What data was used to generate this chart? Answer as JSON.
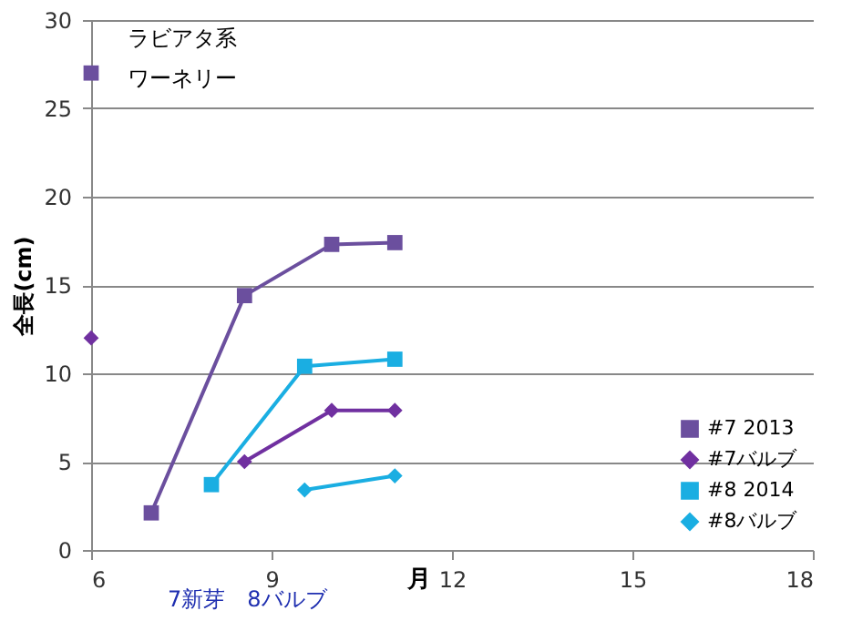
{
  "chart_data": {
    "type": "line",
    "xlabel": "月",
    "ylabel": "全長(cm)",
    "xlim": [
      6,
      18
    ],
    "xticks": [
      6,
      9,
      12,
      15,
      18
    ],
    "ylim": [
      0,
      30
    ],
    "yticks": [
      0,
      5,
      10,
      15,
      20,
      25,
      30
    ],
    "grid": "y",
    "legend": "bottom right",
    "annotations": [
      "ラビアタ系",
      "ワーネリー",
      "7新芽　8バルブ"
    ],
    "series": [
      {
        "name": "#7 2013",
        "color": "#6b4f9e",
        "marker": "square",
        "x": [
          7,
          8.55,
          10,
          11.05
        ],
        "values": [
          2.1,
          14.4,
          17.3,
          17.4
        ]
      },
      {
        "name": "#7バルブ",
        "color": "#7030a0",
        "marker": "diamond",
        "x": [
          6,
          7.5,
          8.55,
          10,
          11.05
        ],
        "values": [
          12,
          null,
          5,
          7.9,
          7.9
        ]
      },
      {
        "name": "#8 2014",
        "color": "#1aaee2",
        "marker": "square",
        "x": [
          8,
          9.55,
          11.05
        ],
        "values": [
          3.7,
          10.4,
          10.8
        ]
      },
      {
        "name": "#8バルブ",
        "color": "#1aaee2",
        "marker": "diamond",
        "x": [
          9.55,
          11.05
        ],
        "values": [
          3.4,
          4.2
        ]
      },
      {
        "color": "#6b4f9e",
        "marker": "square",
        "x": [
          6
        ],
        "values": [
          27
        ]
      }
    ]
  }
}
